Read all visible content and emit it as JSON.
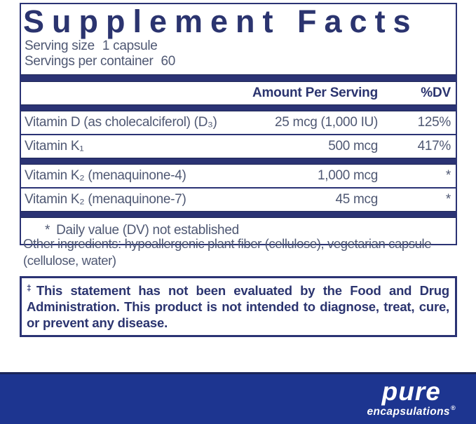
{
  "colors": {
    "navy": "#2b3374",
    "title_navy": "#2b346f",
    "body_text": "#4f5873",
    "band_blue": "#1d3590",
    "logo_white": "#ffffff"
  },
  "facts": {
    "title": "Supplement Facts",
    "serving_size": {
      "label": "Serving size",
      "value": "1 capsule"
    },
    "servings_per_container": {
      "label": "Servings per container",
      "value": "60"
    },
    "columns": {
      "amount": "Amount Per Serving",
      "dv": "%DV"
    },
    "rows": [
      {
        "name": "Vitamin D (as cholecalciferol) (D₃)",
        "amount": "25 mcg (1,000 IU)",
        "dv": "125%"
      },
      {
        "name": "Vitamin K₁",
        "amount": "500 mcg",
        "dv": "417%"
      },
      {
        "name": "Vitamin K₂ (menaquinone-4)",
        "amount": "1,000 mcg",
        "dv": "*"
      },
      {
        "name": "Vitamin K₂ (menaquinone-7)",
        "amount": "45 mcg",
        "dv": "*"
      }
    ],
    "footnote": {
      "symbol": "*",
      "text": "Daily value (DV) not established"
    }
  },
  "other_ingredients": "Other ingredients: hypoallergenic plant fiber (cellulose), vegetarian capsule (cellulose, water)",
  "disclaimer": {
    "symbol": "‡",
    "text": "This statement has not been evaluated by the Food and Drug Administration. This product is not intended to diagnose, treat, cure, or prevent any disease."
  },
  "brand": {
    "wordmark": "pure",
    "tagline": "encapsulations",
    "registered": "®"
  }
}
